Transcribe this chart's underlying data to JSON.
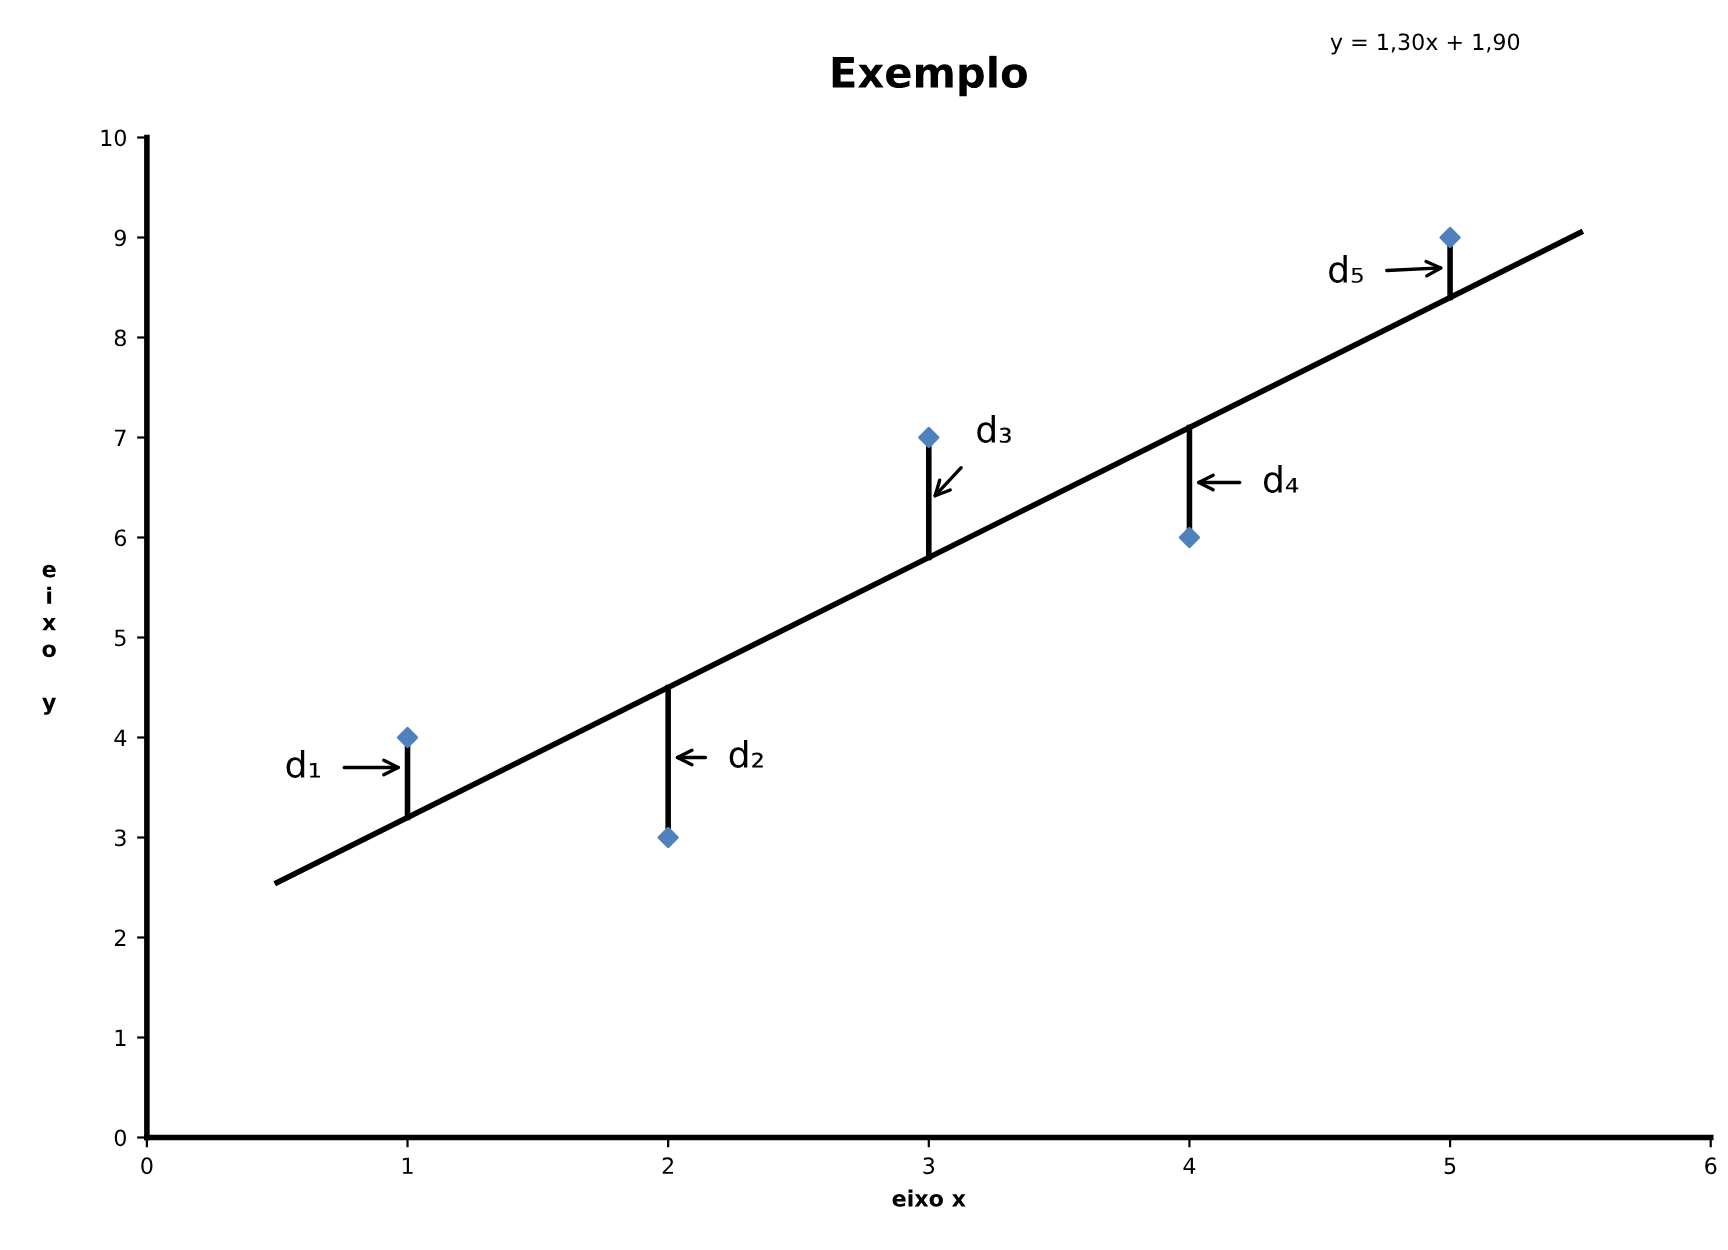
{
  "chart_data": {
    "type": "scatter",
    "title": "Exemplo",
    "xlabel": "eixo x",
    "ylabel": "eixo y",
    "xlim": [
      0,
      6
    ],
    "xticks": [
      0,
      1,
      2,
      3,
      4,
      5,
      6
    ],
    "ylim": [
      0,
      10
    ],
    "yticks": [
      0,
      1,
      2,
      3,
      4,
      5,
      6,
      7,
      8,
      9,
      10
    ],
    "grid": false,
    "legend": false,
    "marker": "diamond",
    "series": [
      {
        "x": [
          1,
          2,
          3,
          4,
          5
        ],
        "values": [
          4,
          3,
          7,
          6,
          9
        ],
        "color": "#4f81bd"
      },
      {
        "type": "line",
        "x": [
          0.5,
          5.5
        ],
        "values": [
          2.55,
          9.05
        ],
        "color": "#000000",
        "marker": "none"
      },
      {
        "type": "line",
        "x": [
          1,
          1
        ],
        "values": [
          4,
          3.2
        ],
        "color": "#000000",
        "marker": "none"
      },
      {
        "type": "line",
        "x": [
          2,
          2
        ],
        "values": [
          3,
          4.5
        ],
        "color": "#000000",
        "marker": "none"
      },
      {
        "type": "line",
        "x": [
          3,
          3
        ],
        "values": [
          7,
          5.8
        ],
        "color": "#000000",
        "marker": "none"
      },
      {
        "type": "line",
        "x": [
          4,
          4
        ],
        "values": [
          6,
          7.1
        ],
        "color": "#000000",
        "marker": "none"
      },
      {
        "type": "line",
        "x": [
          5,
          5
        ],
        "values": [
          9,
          8.4
        ],
        "color": "#000000",
        "marker": "none"
      }
    ],
    "annotations": [
      {
        "text": "d₁",
        "x": 1,
        "y": 3.7
      },
      {
        "text": "d₂",
        "x": 2,
        "y": 3.8
      },
      {
        "text": "d₃",
        "x": 3,
        "y": 6.35
      },
      {
        "text": "d₄",
        "x": 4,
        "y": 6.55
      },
      {
        "text": "d₅",
        "x": 5,
        "y": 8.7
      },
      "y = 1,30x + 1,90"
    ]
  }
}
